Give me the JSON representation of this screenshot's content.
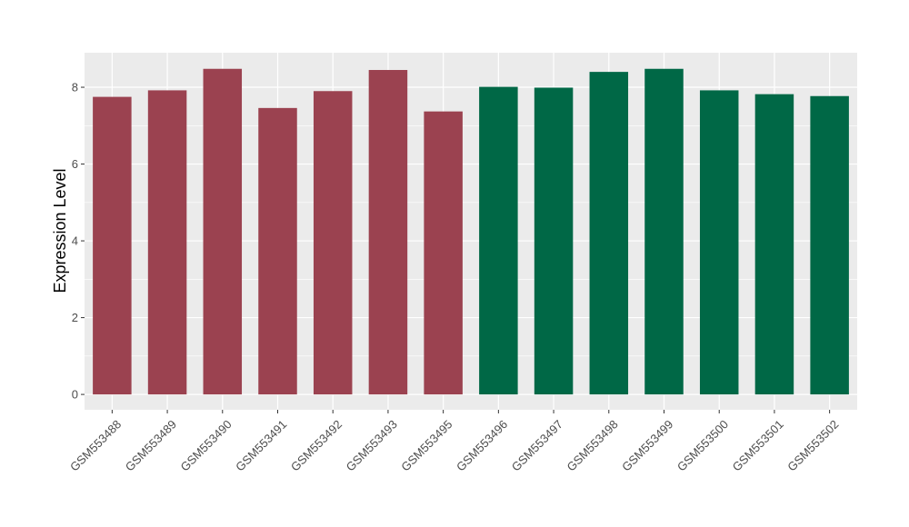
{
  "chart_data": {
    "type": "bar",
    "ylabel": "Expression Level",
    "xlabel": "",
    "title": "",
    "ylim": [
      -0.4,
      8.9
    ],
    "yticks": [
      0,
      2,
      4,
      6,
      8
    ],
    "grid": true,
    "legend": "none",
    "colors": {
      "group_a": "#9b4250",
      "group_b": "#006846",
      "panel": "#ebebeb",
      "gridline": "#ffffff"
    },
    "categories": [
      "GSM553488",
      "GSM553489",
      "GSM553490",
      "GSM553491",
      "GSM553492",
      "GSM553493",
      "GSM553495",
      "GSM553496",
      "GSM553497",
      "GSM553498",
      "GSM553499",
      "GSM553500",
      "GSM553501",
      "GSM553502"
    ],
    "values": [
      7.75,
      7.92,
      8.48,
      7.46,
      7.9,
      8.45,
      7.37,
      8.01,
      7.99,
      8.4,
      8.48,
      7.92,
      7.82,
      7.77
    ],
    "groups": [
      "a",
      "a",
      "a",
      "a",
      "a",
      "a",
      "a",
      "b",
      "b",
      "b",
      "b",
      "b",
      "b",
      "b"
    ]
  }
}
